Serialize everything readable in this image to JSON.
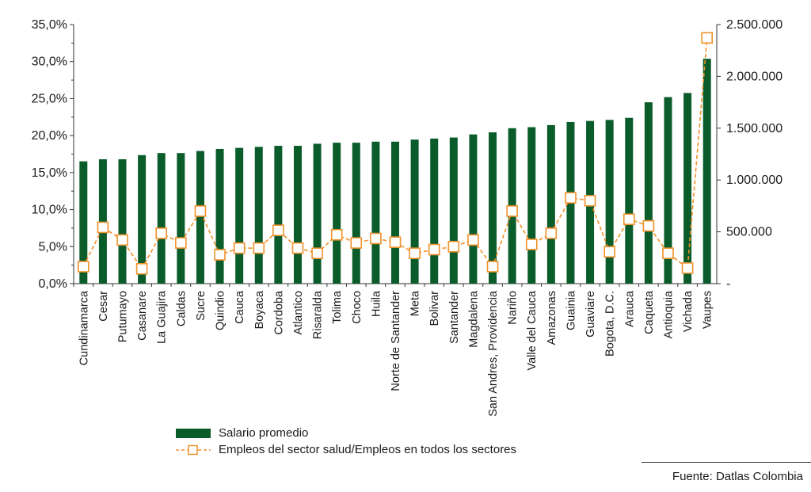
{
  "chart_data": {
    "type": "bar+line",
    "categories": [
      "Cundinamarca",
      "Cesar",
      "Putumayo",
      "Casanare",
      "La Guajira",
      "Caldas",
      "Sucre",
      "Quindio",
      "Cauca",
      "Boyaca",
      "Cordoba",
      "Atlantico",
      "Risaralda",
      "Tolima",
      "Choco",
      "Huila",
      "Norte de Santander",
      "Meta",
      "Bolivar",
      "Santander",
      "Magdalena",
      "San Andres, Providencia",
      "Nariño",
      "Valle del Cauca",
      "Amazonas",
      "Guainia",
      "Guaviare",
      "Bogota, D.C.",
      "Arauca",
      "Caqueta",
      "Antioquia",
      "Vichada",
      "Vaupes"
    ],
    "series": [
      {
        "name": "Salario promedio",
        "kind": "bar",
        "axis": "right",
        "color": "#0a5c2a",
        "values": [
          1180000,
          1200000,
          1200000,
          1240000,
          1260000,
          1260000,
          1280000,
          1300000,
          1310000,
          1320000,
          1330000,
          1330000,
          1350000,
          1360000,
          1360000,
          1370000,
          1370000,
          1390000,
          1400000,
          1410000,
          1440000,
          1460000,
          1500000,
          1510000,
          1530000,
          1560000,
          1570000,
          1580000,
          1600000,
          1750000,
          1800000,
          1840000,
          2170000
        ]
      },
      {
        "name": "Empleos del sector salud/Empleos en todos los sectores",
        "kind": "line",
        "axis": "left",
        "color": "#f0912b",
        "values": [
          2.3,
          7.6,
          5.9,
          2.0,
          6.8,
          5.5,
          9.8,
          3.9,
          4.8,
          4.8,
          7.2,
          4.8,
          4.1,
          6.6,
          5.5,
          6.1,
          5.6,
          4.1,
          4.6,
          5.0,
          5.9,
          2.3,
          9.8,
          5.3,
          6.8,
          11.6,
          11.2,
          4.3,
          8.7,
          7.8,
          4.1,
          2.1,
          33.2
        ]
      }
    ],
    "yleft": {
      "ticks": [
        "35,0%",
        "30,0%",
        "25,0%",
        "20,0%",
        "15,0%",
        "10,0%",
        "5,0%",
        "0,0%"
      ],
      "ylim": [
        0,
        35
      ]
    },
    "yright": {
      "ticks": [
        "2.500.000",
        "2.000.000",
        "1.500.000",
        "1.000.000",
        "500.000",
        "-"
      ],
      "ylim": [
        0,
        2500000
      ]
    },
    "legend_position": "bottom-left",
    "source": "Fuente: Datlas Colombia"
  },
  "legend": {
    "bar_label": "Salario promedio",
    "line_label": "Empleos del sector salud/Empleos en todos los sectores"
  }
}
